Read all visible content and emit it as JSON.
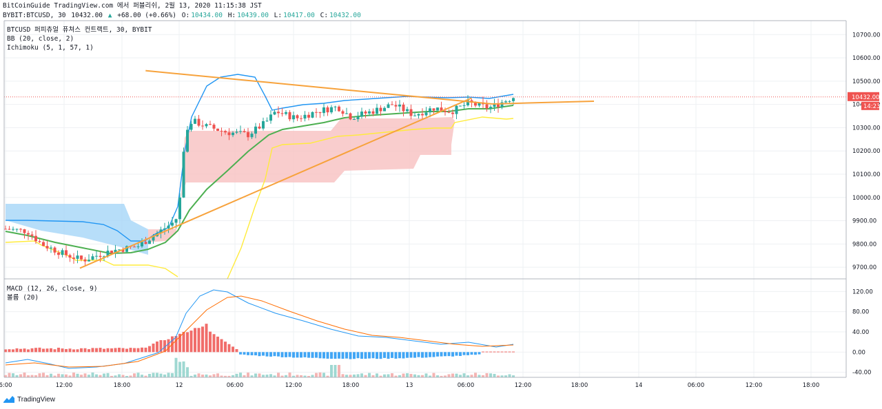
{
  "header": {
    "line1": "BitCoinGuide TradingView.com 에서 퍼블리쉬, 2월 13, 2020 11:15:38 JST",
    "symbol": "BYBIT:BTCUSD, 30",
    "last": "10432.00",
    "change_icon": "triangle-up-icon",
    "change": "+68.00 (+0.66%)",
    "o_label": "O:",
    "o": "10434.00",
    "h_label": "H:",
    "h": "10439.00",
    "l_label": "L:",
    "l": "10417.00",
    "c_label": "C:",
    "c": "10432.00"
  },
  "legends": {
    "main": "BTCUSD 퍼피츄얼 퓨쳐스 컨트랙트, 30, BYBIT",
    "bb": "BB (20, close, 2)",
    "ichimoku": "Ichimoku (5, 1, 57, 1)",
    "macd": "MACD (12, 26, close, 9)",
    "volume": "볼륨 (20)"
  },
  "footer": {
    "logo_icon": "tradingview-logo-icon",
    "brand": "TradingView"
  },
  "colors": {
    "up": "#26a69a",
    "down": "#ef5350",
    "bb": "#2196f3",
    "sma": "#4caf50",
    "ichimoku": "#ffeb3b",
    "trend": "#f7a23b",
    "macd": "#2196f3",
    "signal": "#ff6d00",
    "cloud_bull": "#a5d6f7",
    "cloud_bear": "#f7c0c0"
  },
  "chart_data": [
    {
      "type": "candlestick",
      "title": "BTCUSD 퍼피츄얼 퓨쳐스 컨트랙트, 30, BYBIT",
      "ylim": [
        9650,
        10760
      ],
      "y_ticks": [
        "10700.00",
        "10600.00",
        "10500.00",
        "10400.00",
        "10300.00",
        "10200.00",
        "10100.00",
        "10000.00",
        "9900.00",
        "9800.00",
        "9700.00"
      ],
      "x_ticks": [
        "6:00",
        "12:00",
        "18:00",
        "12",
        "06:00",
        "12:00",
        "18:00",
        "13",
        "06:00",
        "12:00",
        "18:00",
        "14",
        "06:00",
        "12:00",
        "18:00"
      ],
      "last_price_label": "10432.00",
      "countdown_label": "14:23",
      "trendlines": [
        {
          "name": "upper",
          "from": [
            0.168,
            10545
          ],
          "to": [
            0.58,
            10402
          ]
        },
        {
          "name": "lower",
          "from": [
            0.09,
            9696
          ],
          "to": [
            0.555,
            10427
          ]
        }
      ]
    },
    {
      "type": "macd",
      "title": "MACD (12, 26, close, 9)",
      "ylim": [
        -50,
        145
      ],
      "y_ticks": [
        "120.00",
        "80.00",
        "40.00",
        "0.00",
        "-40.00"
      ]
    }
  ]
}
